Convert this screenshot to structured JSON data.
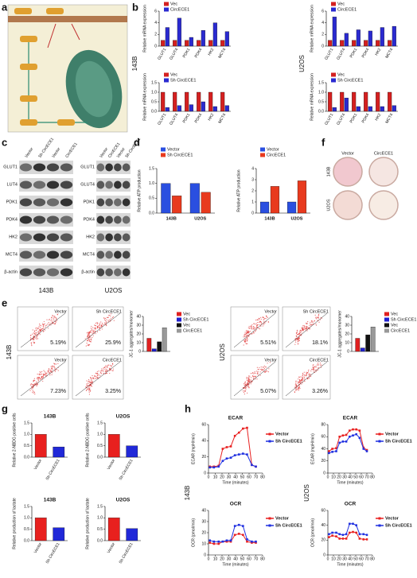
{
  "panel_labels": [
    "a",
    "b",
    "c",
    "d",
    "e",
    "f",
    "g",
    "h"
  ],
  "side_labels": {
    "b": [
      "143B",
      "U2OS"
    ],
    "h": [
      "143B",
      "U2OS"
    ]
  },
  "blots": [
    {
      "cell": "143B",
      "lanes": [
        "Vector",
        "Sh CircECE1",
        "Vector",
        "CircECE1"
      ],
      "proteins": [
        "GLUT1",
        "LUT4",
        "PDK1",
        "PDK4",
        "HK2",
        "MCT4",
        "β-actin"
      ]
    },
    {
      "cell": "U2OS",
      "lanes": [
        "Vector",
        "CircECE1",
        "Vector",
        "Sh CircECE1"
      ],
      "proteins": [
        "GLUT1",
        "GLUT4",
        "PDK1",
        "PDK4",
        "HK2",
        "MCT4",
        "β-actin"
      ]
    }
  ],
  "flow": [
    {
      "cell": "143B",
      "plots": [
        {
          "label": "Vector",
          "percent": "5.19%"
        },
        {
          "label": "Sh CircECE1",
          "percent": "25.9%"
        },
        {
          "label": "Vector",
          "percent": "7.23%"
        },
        {
          "label": "CircECE1",
          "percent": "3.25%"
        }
      ]
    },
    {
      "cell": "U2OS",
      "plots": [
        {
          "label": "Vector",
          "percent": "5.51%"
        },
        {
          "label": "Sh CircECE1",
          "percent": "18.1%"
        },
        {
          "label": "Vector",
          "percent": "5.07%"
        },
        {
          "label": "CircECE1",
          "percent": "3.26%"
        }
      ]
    }
  ],
  "dishes": {
    "columns": [
      "Vector",
      "CircECE1"
    ],
    "rows": [
      "143B",
      "U2OS"
    ]
  },
  "chart_data": [
    {
      "type": "bar",
      "ylabel": "Relative mRNA expression",
      "categories": [
        "GLUT1",
        "GLUT4",
        "PDK1",
        "PDK4",
        "HK2",
        "MCT4"
      ],
      "series": [
        {
          "name": "Vec",
          "color": "#d42020",
          "values": [
            1,
            1,
            1,
            1,
            1,
            1
          ]
        },
        {
          "name": "CircECE1",
          "color": "#2a2ad0",
          "values": [
            3.2,
            4.8,
            1.5,
            2.7,
            4.0,
            2.5
          ]
        }
      ],
      "ylim": [
        0,
        6
      ],
      "yticks": [
        0,
        2,
        4,
        6
      ]
    },
    {
      "type": "bar",
      "ylabel": "Relative mRNA expression",
      "categories": [
        "GLUT1",
        "GLUT4",
        "PDK1",
        "PDK4",
        "HK2",
        "MCT4"
      ],
      "series": [
        {
          "name": "Vec",
          "color": "#d42020",
          "values": [
            1,
            1,
            1,
            1,
            1,
            1
          ]
        },
        {
          "name": "CircECE1",
          "color": "#2a2ad0",
          "values": [
            5.0,
            2.2,
            2.8,
            2.6,
            3.2,
            3.4
          ]
        }
      ],
      "ylim": [
        0,
        6
      ],
      "yticks": [
        0,
        2,
        4,
        6
      ]
    },
    {
      "type": "bar",
      "ylabel": "Relative mRNA expression",
      "categories": [
        "GLUT1",
        "GLUT4",
        "PDK1",
        "PDK4",
        "HK2",
        "MCT4"
      ],
      "series": [
        {
          "name": "Vec",
          "color": "#d42020",
          "values": [
            1,
            1,
            1,
            1,
            1,
            1
          ]
        },
        {
          "name": "Sh CircECE1",
          "color": "#2a2ad0",
          "values": [
            0.2,
            0.3,
            0.35,
            0.5,
            0.25,
            0.3
          ]
        }
      ],
      "ylim": [
        0,
        1.5
      ],
      "yticks": [
        {
          "value": 0,
          "label": "0.0"
        },
        {
          "value": 0.5,
          "label": "0.5"
        },
        {
          "value": 1,
          "label": "1.0"
        },
        {
          "value": 1.5,
          "label": "1.5"
        }
      ]
    },
    {
      "type": "bar",
      "ylabel": "Relative mRNA expression",
      "categories": [
        "GLUT1",
        "GLUT4",
        "PDK1",
        "PDK4",
        "HK2",
        "MCT4"
      ],
      "series": [
        {
          "name": "Vec",
          "color": "#d42020",
          "values": [
            1,
            1,
            1,
            1,
            1,
            1
          ]
        },
        {
          "name": "Sh CircECE1",
          "color": "#2a2ad0",
          "values": [
            0.2,
            0.7,
            0.25,
            0.25,
            0.25,
            0.3
          ]
        }
      ],
      "ylim": [
        0,
        1.5
      ],
      "yticks": [
        {
          "value": 0,
          "label": "0.0"
        },
        {
          "value": 0.5,
          "label": "0.5"
        },
        {
          "value": 1,
          "label": "1.0"
        },
        {
          "value": 1.5,
          "label": "1.5"
        }
      ]
    },
    {
      "type": "bar",
      "ylabel": "Relative ATP production",
      "categories": [
        "143B",
        "U2OS"
      ],
      "series": [
        {
          "name": "Vector",
          "color": "#2a4fe0",
          "values": [
            1.0,
            1.0
          ]
        },
        {
          "name": "Sh CircECE1",
          "color": "#e83a1e",
          "values": [
            0.58,
            0.7
          ]
        }
      ],
      "ylim": [
        0,
        1.5
      ],
      "yticks": [
        {
          "value": 0,
          "label": "0.0"
        },
        {
          "value": 0.5,
          "label": "0.5"
        },
        {
          "value": 1,
          "label": "1.0"
        },
        {
          "value": 1.5,
          "label": "1.5"
        }
      ]
    },
    {
      "type": "bar",
      "ylabel": "Relative ATP production",
      "categories": [
        "143B",
        "U2OS"
      ],
      "series": [
        {
          "name": "Vector",
          "color": "#2a4fe0",
          "values": [
            1.0,
            1.0
          ]
        },
        {
          "name": "CircECE1",
          "color": "#e83a1e",
          "values": [
            2.4,
            2.9
          ]
        }
      ],
      "ylim": [
        0,
        4
      ],
      "yticks": [
        0,
        1,
        2,
        3,
        4
      ]
    },
    {
      "type": "bar",
      "ylabel": "JC-1 aggregates/monomer",
      "categories": [
        null
      ],
      "series": [
        {
          "name": "Vec",
          "color": "#e02020",
          "values": [
            15
          ]
        },
        {
          "name": "Sh CircECE1",
          "color": "#2020d0",
          "values": [
            3
          ]
        },
        {
          "name": "Vec",
          "color": "#111111",
          "values": [
            11
          ]
        },
        {
          "name": "CircECE1",
          "color": "#999999",
          "values": [
            27
          ]
        }
      ],
      "ylim": [
        0,
        40
      ],
      "yticks": [
        0,
        10,
        20,
        30,
        40
      ]
    },
    {
      "type": "bar",
      "ylabel": "JC-1 aggregates/monomer",
      "categories": [
        null
      ],
      "series": [
        {
          "name": "Vec",
          "color": "#e02020",
          "values": [
            15
          ]
        },
        {
          "name": "Sh CircECE1",
          "color": "#2020d0",
          "values": [
            4
          ]
        },
        {
          "name": "Vec",
          "color": "#111111",
          "values": [
            19
          ]
        },
        {
          "name": "CircECE1",
          "color": "#999999",
          "values": [
            28
          ]
        }
      ],
      "ylim": [
        0,
        40
      ],
      "yticks": [
        0,
        10,
        20,
        30,
        40
      ]
    },
    {
      "type": "bar",
      "title": "143B",
      "ylabel": "Relative 2-NBDG positive cells",
      "categories": [
        "Vector",
        "Sh CircECE1"
      ],
      "series": [
        {
          "colors": [
            "#e8201e",
            "#2028d8"
          ],
          "values": [
            1.0,
            0.45
          ]
        }
      ],
      "ylim": [
        0,
        1.5
      ],
      "yticks": [
        {
          "value": 0,
          "label": "0.0"
        },
        {
          "value": 0.5,
          "label": "0.5"
        },
        {
          "value": 1,
          "label": "1.0"
        },
        {
          "value": 1.5,
          "label": "1.5"
        }
      ]
    },
    {
      "type": "bar",
      "title": "U2OS",
      "ylabel": "Relative 2-NBDG positive cells",
      "categories": [
        "Vector",
        "Sh CircECE1"
      ],
      "series": [
        {
          "colors": [
            "#e8201e",
            "#2028d8"
          ],
          "values": [
            1.0,
            0.5
          ]
        }
      ],
      "ylim": [
        0,
        1.5
      ],
      "yticks": [
        {
          "value": 0,
          "label": "0.0"
        },
        {
          "value": 0.5,
          "label": "0.5"
        },
        {
          "value": 1,
          "label": "1.0"
        },
        {
          "value": 1.5,
          "label": "1.5"
        }
      ]
    },
    {
      "type": "bar",
      "title": "143B",
      "ylabel": "Relative production of lactate",
      "categories": [
        "Vector",
        "Sh CircECE1"
      ],
      "series": [
        {
          "colors": [
            "#e8201e",
            "#2028d8"
          ],
          "values": [
            1.0,
            0.57
          ]
        }
      ],
      "ylim": [
        0,
        1.5
      ],
      "yticks": [
        {
          "value": 0,
          "label": "0.0"
        },
        {
          "value": 0.5,
          "label": "0.5"
        },
        {
          "value": 1,
          "label": "1.0"
        },
        {
          "value": 1.5,
          "label": "1.5"
        }
      ]
    },
    {
      "type": "bar",
      "title": "U2OS",
      "ylabel": "Relative production of lactate",
      "categories": [
        "Vector",
        "Sh CircECE1"
      ],
      "series": [
        {
          "colors": [
            "#e8201e",
            "#2028d8"
          ],
          "values": [
            1.0,
            0.53
          ]
        }
      ],
      "ylim": [
        0,
        1.5
      ],
      "yticks": [
        {
          "value": 0,
          "label": "0.0"
        },
        {
          "value": 0.5,
          "label": "0.5"
        },
        {
          "value": 1,
          "label": "1.0"
        },
        {
          "value": 1.5,
          "label": "1.5"
        }
      ]
    },
    {
      "type": "line",
      "title": "ECAR",
      "xlabel": "Time (minutes)",
      "ylabel": "ECAR (mpH/min)",
      "x": [
        2,
        8,
        15,
        21,
        27,
        33,
        39,
        45,
        51,
        57,
        64,
        70
      ],
      "xlim": [
        0,
        80
      ],
      "xticks": [
        0,
        10,
        20,
        30,
        40,
        50,
        60,
        70,
        80
      ],
      "ylim": [
        0,
        60
      ],
      "yticks": [
        0,
        20,
        40,
        60
      ],
      "series": [
        {
          "name": "Vector",
          "color": "#e82020",
          "values": [
            8,
            8,
            9,
            30,
            32,
            33,
            46,
            50,
            55,
            56,
            10,
            8
          ]
        },
        {
          "name": "Sh CircECE1",
          "color": "#2030e0",
          "values": [
            7,
            7,
            8,
            15,
            18,
            19,
            22,
            23,
            24,
            23,
            10,
            8
          ]
        }
      ]
    },
    {
      "type": "line",
      "title": "OCR",
      "xlabel": "Time (minutes)",
      "ylabel": "OCR (pmol/min)",
      "x": [
        2,
        8,
        15,
        21,
        27,
        33,
        39,
        45,
        51,
        57,
        64,
        70
      ],
      "xlim": [
        0,
        80
      ],
      "xticks": [
        0,
        10,
        20,
        30,
        40,
        50,
        60,
        70,
        80
      ],
      "ylim": [
        0,
        40
      ],
      "yticks": [
        0,
        10,
        20,
        30,
        40
      ],
      "series": [
        {
          "name": "Vector",
          "color": "#e82020",
          "values": [
            11,
            10,
            10,
            12,
            12,
            12,
            18,
            19,
            18,
            12,
            11,
            11
          ]
        },
        {
          "name": "Sh CircECE1",
          "color": "#2030e0",
          "values": [
            13,
            12,
            12,
            12,
            13,
            13,
            26,
            27,
            26,
            14,
            12,
            12
          ]
        }
      ]
    },
    {
      "type": "line",
      "title": "ECAR",
      "xlabel": "Time (minutes)",
      "ylabel": "ECAR (mpH/min)",
      "x": [
        2,
        8,
        15,
        21,
        27,
        33,
        39,
        45,
        51,
        57,
        64,
        70
      ],
      "xlim": [
        0,
        80
      ],
      "xticks": [
        0,
        10,
        20,
        30,
        40,
        50,
        60,
        70,
        80
      ],
      "ylim": [
        0,
        80
      ],
      "yticks": [
        0,
        20,
        40,
        60,
        80
      ],
      "series": [
        {
          "name": "Vector",
          "color": "#e82020",
          "values": [
            36,
            40,
            41,
            60,
            62,
            63,
            70,
            72,
            72,
            70,
            42,
            38
          ]
        },
        {
          "name": "Sh CircECE1",
          "color": "#2030e0",
          "values": [
            33,
            35,
            36,
            50,
            52,
            52,
            60,
            62,
            64,
            58,
            40,
            36
          ]
        }
      ]
    },
    {
      "type": "line",
      "title": "OCR",
      "xlabel": "Time (minutes)",
      "ylabel": "OCR (pmol/min)",
      "x": [
        2,
        8,
        15,
        21,
        27,
        33,
        39,
        45,
        51,
        57,
        64,
        70
      ],
      "xlim": [
        0,
        80
      ],
      "xticks": [
        0,
        10,
        20,
        30,
        40,
        50,
        60,
        70,
        80
      ],
      "ylim": [
        0,
        60
      ],
      "yticks": [
        0,
        20,
        40,
        60
      ],
      "series": [
        {
          "name": "Vector",
          "color": "#e82020",
          "values": [
            24,
            26,
            25,
            22,
            22,
            22,
            30,
            31,
            30,
            22,
            21,
            21
          ]
        },
        {
          "name": "Sh CircECE1",
          "color": "#2030e0",
          "values": [
            28,
            30,
            30,
            28,
            27,
            28,
            42,
            42,
            40,
            28,
            28,
            27
          ]
        }
      ]
    }
  ]
}
